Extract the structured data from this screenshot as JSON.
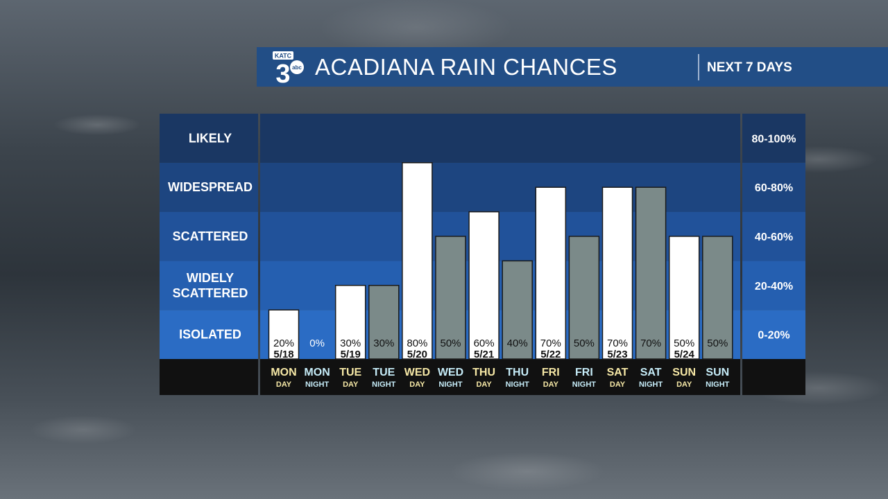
{
  "header": {
    "logo_text": "KATC",
    "logo_number": "3",
    "logo_network": "abc",
    "title": "ACADIANA RAIN CHANCES",
    "subtitle": "NEXT 7 DAYS"
  },
  "colors": {
    "header_bg": "#224e86",
    "day_bar": "#ffffff",
    "night_bar": "#7b8a89",
    "day_label": "#f6e8a6",
    "night_label": "#c6ecf8",
    "axis_bg": "#111111"
  },
  "chart_data": {
    "type": "bar",
    "title": "ACADIANA RAIN CHANCES",
    "ylim": [
      0,
      100
    ],
    "bands": [
      {
        "label": "ISOLATED",
        "range": "0-20%",
        "color": "#2b6cc4"
      },
      {
        "label": "WIDELY\nSCATTERED",
        "range": "20-40%",
        "color": "#255fb0"
      },
      {
        "label": "SCATTERED",
        "range": "40-60%",
        "color": "#21529a"
      },
      {
        "label": "WIDESPREAD",
        "range": "60-80%",
        "color": "#1d4580"
      },
      {
        "label": "LIKELY",
        "range": "80-100%",
        "color": "#1a3763"
      }
    ],
    "bars": [
      {
        "day": "MON",
        "period": "DAY",
        "value": 20,
        "label": "20%",
        "date": "5/18"
      },
      {
        "day": "MON",
        "period": "NIGHT",
        "value": 0,
        "label": "0%",
        "date": ""
      },
      {
        "day": "TUE",
        "period": "DAY",
        "value": 30,
        "label": "30%",
        "date": "5/19"
      },
      {
        "day": "TUE",
        "period": "NIGHT",
        "value": 30,
        "label": "30%",
        "date": ""
      },
      {
        "day": "WED",
        "period": "DAY",
        "value": 80,
        "label": "80%",
        "date": "5/20"
      },
      {
        "day": "WED",
        "period": "NIGHT",
        "value": 50,
        "label": "50%",
        "date": ""
      },
      {
        "day": "THU",
        "period": "DAY",
        "value": 60,
        "label": "60%",
        "date": "5/21"
      },
      {
        "day": "THU",
        "period": "NIGHT",
        "value": 40,
        "label": "40%",
        "date": ""
      },
      {
        "day": "FRI",
        "period": "DAY",
        "value": 70,
        "label": "70%",
        "date": "5/22"
      },
      {
        "day": "FRI",
        "period": "NIGHT",
        "value": 50,
        "label": "50%",
        "date": ""
      },
      {
        "day": "SAT",
        "period": "DAY",
        "value": 70,
        "label": "70%",
        "date": "5/23"
      },
      {
        "day": "SAT",
        "period": "NIGHT",
        "value": 70,
        "label": "70%",
        "date": ""
      },
      {
        "day": "SUN",
        "period": "DAY",
        "value": 50,
        "label": "50%",
        "date": "5/24"
      },
      {
        "day": "SUN",
        "period": "NIGHT",
        "value": 50,
        "label": "50%",
        "date": ""
      }
    ]
  }
}
